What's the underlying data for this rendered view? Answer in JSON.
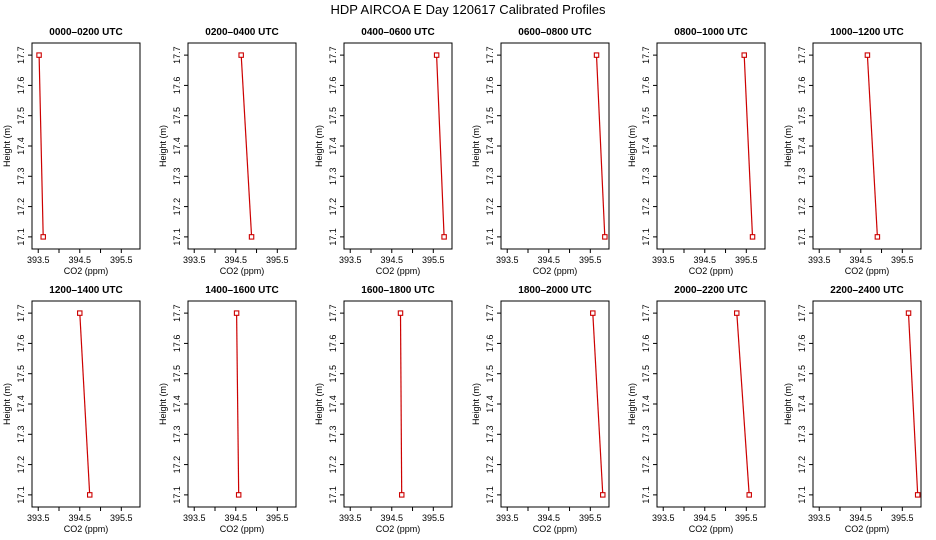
{
  "page": {
    "title": "HDP AIRCOA E  Day 120617  Calibrated Profiles"
  },
  "style": {
    "line_color": "#cc0000",
    "marker_color": "#cc0000",
    "axis_color": "#000000"
  },
  "chart_data": [
    {
      "type": "line",
      "title": "0000–0200 UTC",
      "xlabel": "CO2 (ppm)",
      "ylabel": "Height (m)",
      "xlim": [
        393.35,
        395.95
      ],
      "ylim": [
        17.06,
        17.74
      ],
      "xticks": [
        "393.5",
        "394.5",
        "395.5"
      ],
      "yticks": [
        "17.1",
        "17.2",
        "17.3",
        "17.4",
        "17.5",
        "17.6",
        "17.7"
      ],
      "series": [
        {
          "x": [
            393.52,
            393.62
          ],
          "y": [
            17.7,
            17.1
          ]
        }
      ]
    },
    {
      "type": "line",
      "title": "0200–0400 UTC",
      "xlabel": "CO2 (ppm)",
      "ylabel": "Height (m)",
      "xlim": [
        393.35,
        395.95
      ],
      "ylim": [
        17.06,
        17.74
      ],
      "xticks": [
        "393.5",
        "394.5",
        "395.5"
      ],
      "yticks": [
        "17.1",
        "17.2",
        "17.3",
        "17.4",
        "17.5",
        "17.6",
        "17.7"
      ],
      "series": [
        {
          "x": [
            394.63,
            394.88
          ],
          "y": [
            17.7,
            17.1
          ]
        }
      ]
    },
    {
      "type": "line",
      "title": "0400–0600 UTC",
      "xlabel": "CO2 (ppm)",
      "ylabel": "Height (m)",
      "xlim": [
        393.35,
        395.95
      ],
      "ylim": [
        17.06,
        17.74
      ],
      "xticks": [
        "393.5",
        "394.5",
        "395.5"
      ],
      "yticks": [
        "17.1",
        "17.2",
        "17.3",
        "17.4",
        "17.5",
        "17.6",
        "17.7"
      ],
      "series": [
        {
          "x": [
            395.58,
            395.76
          ],
          "y": [
            17.7,
            17.1
          ]
        }
      ]
    },
    {
      "type": "line",
      "title": "0600–0800 UTC",
      "xlabel": "CO2 (ppm)",
      "ylabel": "Height (m)",
      "xlim": [
        393.35,
        395.95
      ],
      "ylim": [
        17.06,
        17.74
      ],
      "xticks": [
        "393.5",
        "394.5",
        "395.5"
      ],
      "yticks": [
        "17.1",
        "17.2",
        "17.3",
        "17.4",
        "17.5",
        "17.6",
        "17.7"
      ],
      "series": [
        {
          "x": [
            395.65,
            395.85
          ],
          "y": [
            17.7,
            17.1
          ]
        }
      ]
    },
    {
      "type": "line",
      "title": "0800–1000 UTC",
      "xlabel": "CO2 (ppm)",
      "ylabel": "Height (m)",
      "xlim": [
        393.35,
        395.95
      ],
      "ylim": [
        17.06,
        17.74
      ],
      "xticks": [
        "393.5",
        "394.5",
        "395.5"
      ],
      "yticks": [
        "17.1",
        "17.2",
        "17.3",
        "17.4",
        "17.5",
        "17.6",
        "17.7"
      ],
      "series": [
        {
          "x": [
            395.45,
            395.65
          ],
          "y": [
            17.7,
            17.1
          ]
        }
      ]
    },
    {
      "type": "line",
      "title": "1000–1200 UTC",
      "xlabel": "CO2 (ppm)",
      "ylabel": "Height (m)",
      "xlim": [
        393.35,
        395.95
      ],
      "ylim": [
        17.06,
        17.74
      ],
      "xticks": [
        "393.5",
        "394.5",
        "395.5"
      ],
      "yticks": [
        "17.1",
        "17.2",
        "17.3",
        "17.4",
        "17.5",
        "17.6",
        "17.7"
      ],
      "series": [
        {
          "x": [
            394.66,
            394.9
          ],
          "y": [
            17.7,
            17.1
          ]
        }
      ]
    },
    {
      "type": "line",
      "title": "1200–1400 UTC",
      "xlabel": "CO2 (ppm)",
      "ylabel": "Height (m)",
      "xlim": [
        393.35,
        395.95
      ],
      "ylim": [
        17.06,
        17.74
      ],
      "xticks": [
        "393.5",
        "394.5",
        "395.5"
      ],
      "yticks": [
        "17.1",
        "17.2",
        "17.3",
        "17.4",
        "17.5",
        "17.6",
        "17.7"
      ],
      "series": [
        {
          "x": [
            394.5,
            394.74
          ],
          "y": [
            17.7,
            17.1
          ]
        }
      ]
    },
    {
      "type": "line",
      "title": "1400–1600 UTC",
      "xlabel": "CO2 (ppm)",
      "ylabel": "Height (m)",
      "xlim": [
        393.35,
        395.95
      ],
      "ylim": [
        17.06,
        17.74
      ],
      "xticks": [
        "393.5",
        "394.5",
        "395.5"
      ],
      "yticks": [
        "17.1",
        "17.2",
        "17.3",
        "17.4",
        "17.5",
        "17.6",
        "17.7"
      ],
      "series": [
        {
          "x": [
            394.52,
            394.57
          ],
          "y": [
            17.7,
            17.1
          ]
        }
      ]
    },
    {
      "type": "line",
      "title": "1600–1800 UTC",
      "xlabel": "CO2 (ppm)",
      "ylabel": "Height (m)",
      "xlim": [
        393.35,
        395.95
      ],
      "ylim": [
        17.06,
        17.74
      ],
      "xticks": [
        "393.5",
        "394.5",
        "395.5"
      ],
      "yticks": [
        "17.1",
        "17.2",
        "17.3",
        "17.4",
        "17.5",
        "17.6",
        "17.7"
      ],
      "series": [
        {
          "x": [
            394.71,
            394.74
          ],
          "y": [
            17.7,
            17.1
          ]
        }
      ]
    },
    {
      "type": "line",
      "title": "1800–2000 UTC",
      "xlabel": "CO2 (ppm)",
      "ylabel": "Height (m)",
      "xlim": [
        393.35,
        395.95
      ],
      "ylim": [
        17.06,
        17.74
      ],
      "xticks": [
        "393.5",
        "394.5",
        "395.5"
      ],
      "yticks": [
        "17.1",
        "17.2",
        "17.3",
        "17.4",
        "17.5",
        "17.6",
        "17.7"
      ],
      "series": [
        {
          "x": [
            395.56,
            395.8
          ],
          "y": [
            17.7,
            17.1
          ]
        }
      ]
    },
    {
      "type": "line",
      "title": "2000–2200 UTC",
      "xlabel": "CO2 (ppm)",
      "ylabel": "Height (m)",
      "xlim": [
        393.35,
        395.95
      ],
      "ylim": [
        17.06,
        17.74
      ],
      "xticks": [
        "393.5",
        "394.5",
        "395.5"
      ],
      "yticks": [
        "17.1",
        "17.2",
        "17.3",
        "17.4",
        "17.5",
        "17.6",
        "17.7"
      ],
      "series": [
        {
          "x": [
            395.27,
            395.57
          ],
          "y": [
            17.7,
            17.1
          ]
        }
      ]
    },
    {
      "type": "line",
      "title": "2200–2400 UTC",
      "xlabel": "CO2 (ppm)",
      "ylabel": "Height (m)",
      "xlim": [
        393.35,
        395.95
      ],
      "ylim": [
        17.06,
        17.74
      ],
      "xticks": [
        "393.5",
        "394.5",
        "395.5"
      ],
      "yticks": [
        "17.1",
        "17.2",
        "17.3",
        "17.4",
        "17.5",
        "17.6",
        "17.7"
      ],
      "series": [
        {
          "x": [
            395.65,
            395.87
          ],
          "y": [
            17.7,
            17.1
          ]
        }
      ]
    }
  ]
}
